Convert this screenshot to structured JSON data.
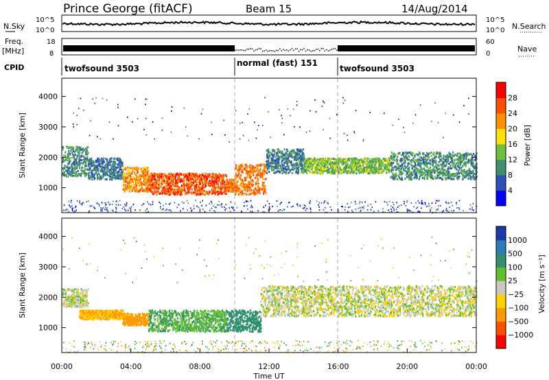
{
  "header": {
    "station": "Prince George (fitACF)",
    "beam": "Beam 15",
    "date": "14/Aug/2014"
  },
  "nsky_panel": {
    "left_label": "N.Sky",
    "left_ticks": [
      "10^5",
      "10^0"
    ],
    "right_label": "N.Search",
    "right_ticks": [
      "10^5",
      "10^0"
    ]
  },
  "freq_panel": {
    "left_label": "Freq.",
    "left_unit": "[MHz]",
    "left_ticks": [
      "18",
      "8"
    ],
    "right_label": "Nave",
    "right_ticks": [
      "60",
      "0"
    ]
  },
  "cpid": {
    "label": "CPID",
    "segments": [
      {
        "name": "twofsound 3503",
        "start_hour": 0,
        "end_hour": 10
      },
      {
        "name": "normal (fast) 151",
        "start_hour": 10,
        "end_hour": 16
      },
      {
        "name": "twofsound 3503",
        "start_hour": 16,
        "end_hour": 24
      }
    ]
  },
  "power_legend": {
    "title": "Power [dB]",
    "ticks": [
      "28",
      "24",
      "20",
      "16",
      "12",
      "8",
      "4"
    ],
    "colors": [
      "#0000ff",
      "#2f4fb8",
      "#3f8f6f",
      "#6fbf3f",
      "#ffe000",
      "#ff9000",
      "#ff5000",
      "#ff0000"
    ]
  },
  "velocity_legend": {
    "title": "Velocity [m s⁻¹]",
    "ticks": [
      "1000",
      "500",
      "100",
      "25",
      "−25",
      "−100",
      "−500",
      "−1000"
    ],
    "colors": [
      "#1a3aa8",
      "#2f7ab8",
      "#2f8f6f",
      "#5fbf2f",
      "#c8c8c0",
      "#ffd000",
      "#ff9a00",
      "#ff5000",
      "#ff0000"
    ]
  },
  "chart_data": {
    "type": "heatmap",
    "xlabel": "Time UT",
    "ylabel": "Slant Range [km]",
    "x_ticks": [
      "00:00",
      "04:00",
      "08:00",
      "12:00",
      "16:00",
      "20:00",
      "00:00"
    ],
    "y_ticks": [
      "1000",
      "2000",
      "3000",
      "4000"
    ],
    "xlim_hours": [
      0,
      24
    ],
    "ylim_km": [
      180,
      4600
    ],
    "power_scatter": [
      {
        "start_hour": 0.0,
        "end_hour": 1.5,
        "range_km": [
          1400,
          2400
        ],
        "power_db": 10
      },
      {
        "start_hour": 1.5,
        "end_hour": 3.5,
        "range_km": [
          1300,
          2000
        ],
        "power_db": 8
      },
      {
        "start_hour": 3.5,
        "end_hour": 5.0,
        "range_km": [
          900,
          1700
        ],
        "power_db": 22
      },
      {
        "start_hour": 5.0,
        "end_hour": 9.5,
        "range_km": [
          800,
          1500
        ],
        "power_db": 26
      },
      {
        "start_hour": 9.5,
        "end_hour": 10.0,
        "range_km": [
          900,
          1300
        ],
        "power_db": 24
      },
      {
        "start_hour": 10.0,
        "end_hour": 11.8,
        "range_km": [
          800,
          1800
        ],
        "power_db": 24
      },
      {
        "start_hour": 11.8,
        "end_hour": 14.0,
        "range_km": [
          1500,
          2300
        ],
        "power_db": 9
      },
      {
        "start_hour": 14.0,
        "end_hour": 19.0,
        "range_km": [
          1500,
          2000
        ],
        "power_db": 14
      },
      {
        "start_hour": 19.0,
        "end_hour": 24.0,
        "range_km": [
          1300,
          2200
        ],
        "power_db": 10
      }
    ],
    "velocity_scatter": [
      {
        "start_hour": 0.0,
        "end_hour": 1.5,
        "range_km": [
          1700,
          2300
        ],
        "velocity_ms": 0
      },
      {
        "start_hour": 1.0,
        "end_hour": 3.5,
        "range_km": [
          1300,
          1600
        ],
        "velocity_ms": -100
      },
      {
        "start_hour": 3.5,
        "end_hour": 5.0,
        "range_km": [
          1100,
          1500
        ],
        "velocity_ms": -150
      },
      {
        "start_hour": 5.0,
        "end_hour": 9.5,
        "range_km": [
          900,
          1600
        ],
        "velocity_ms": 80
      },
      {
        "start_hour": 9.5,
        "end_hour": 11.5,
        "range_km": [
          900,
          1600
        ],
        "velocity_ms": 200
      },
      {
        "start_hour": 11.5,
        "end_hour": 24.0,
        "range_km": [
          1400,
          2400
        ],
        "velocity_ms": 0
      }
    ]
  }
}
